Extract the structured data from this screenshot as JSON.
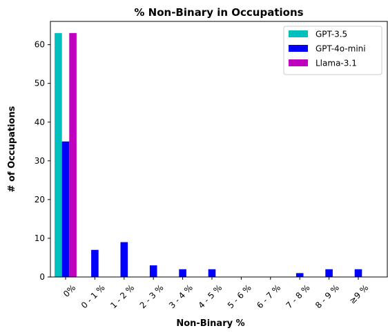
{
  "chart_data": {
    "type": "bar",
    "title": "% Non-Binary in Occupations",
    "xlabel": "Non-Binary %",
    "ylabel": "# of Occupations",
    "categories": [
      "0%",
      "0 - 1 %",
      "1 - 2 %",
      "2 - 3 %",
      "3 - 4 %",
      "4 - 5 %",
      "5 - 6 %",
      "6 - 7 %",
      "7 - 8 %",
      "8 - 9 %",
      "≥9 %"
    ],
    "yticks": [
      0,
      10,
      20,
      30,
      40,
      50,
      60
    ],
    "ylim": [
      0,
      66
    ],
    "grid": false,
    "legend_position": "top-right",
    "series": [
      {
        "name": "GPT-3.5",
        "color": "#00bfbf",
        "values": [
          63,
          0,
          0,
          0,
          0,
          0,
          0,
          0,
          0,
          0,
          0
        ]
      },
      {
        "name": "GPT-4o-mini",
        "color": "#0000ff",
        "values": [
          35,
          7,
          9,
          3,
          2,
          2,
          0,
          0,
          1,
          2,
          2
        ]
      },
      {
        "name": "Llama-3.1",
        "color": "#bf00bf",
        "values": [
          63,
          0,
          0,
          0,
          0,
          0,
          0,
          0,
          0,
          0,
          0
        ]
      }
    ]
  }
}
